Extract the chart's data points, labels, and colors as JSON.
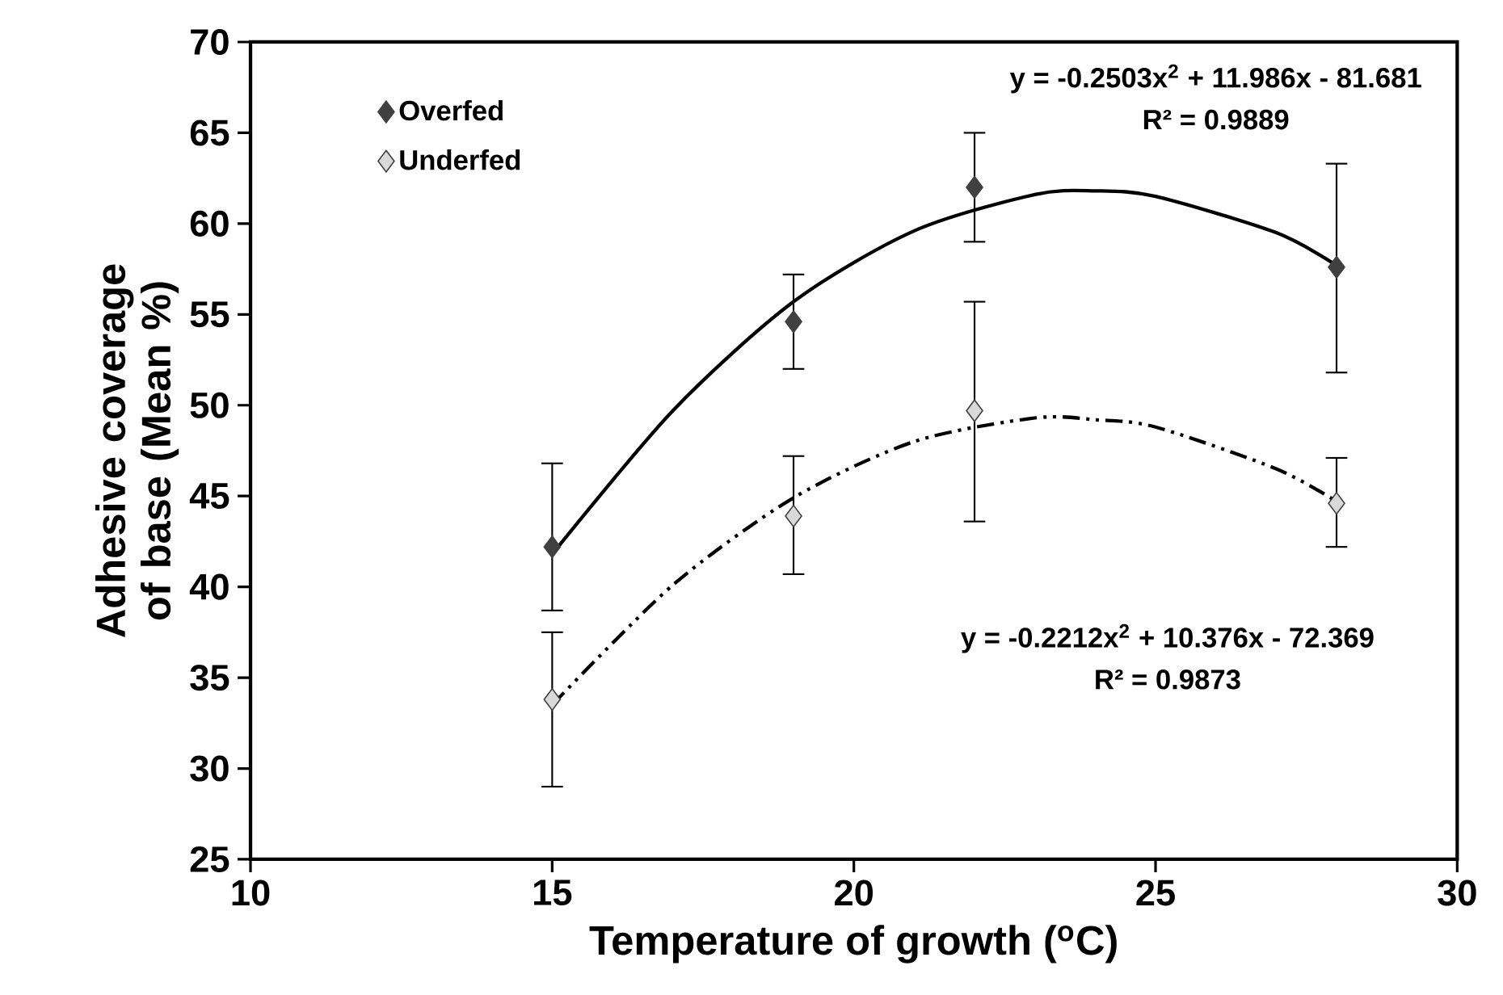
{
  "chart_data": {
    "type": "scatter",
    "xlabel": "Temperature of growth ($^{o}$C)",
    "ylabel": "Adhesive coverage of base (Mean %)",
    "x": [
      15,
      19,
      22,
      28
    ],
    "xlim": [
      10,
      30
    ],
    "xticks": [
      10,
      15,
      20,
      25,
      30
    ],
    "ylim": [
      25,
      70
    ],
    "yticks": [
      25,
      30,
      35,
      40,
      45,
      50,
      55,
      60,
      65,
      70
    ],
    "grid": false,
    "legend": "top left",
    "series": [
      {
        "name": "Overfed",
        "color": "#404040",
        "marker": "diamond",
        "values": [
          42.2,
          54.6,
          62.0,
          57.6
        ],
        "errors": [
          [
            38.7,
            46.8
          ],
          [
            52.0,
            57.2
          ],
          [
            59.0,
            65.0
          ],
          [
            51.8,
            63.3
          ]
        ]
      },
      {
        "name": "Underfed",
        "color": "#d9d9d9",
        "marker": "diamond",
        "values": [
          33.8,
          43.9,
          49.7,
          44.6
        ],
        "errors": [
          [
            29.0,
            37.5
          ],
          [
            40.7,
            47.2
          ],
          [
            43.6,
            55.7
          ],
          [
            42.2,
            47.1
          ]
        ]
      },
      {
        "type": "line",
        "color": "#000000",
        "marker": "none",
        "line_style": "solid",
        "x": [
          15,
          17,
          19,
          21,
          23,
          24,
          25,
          27,
          28
        ],
        "values": [
          41.8,
          49.7,
          55.7,
          59.6,
          61.6,
          61.8,
          61.5,
          59.5,
          57.7
        ]
      },
      {
        "type": "line",
        "color": "#000000",
        "marker": "none",
        "line_style": "dashdotdot",
        "x": [
          15,
          17,
          19,
          21,
          23,
          24,
          25,
          27,
          28
        ],
        "values": [
          33.5,
          40.1,
          44.9,
          48.0,
          49.3,
          49.2,
          48.8,
          46.5,
          44.7
        ]
      }
    ],
    "annotations": [
      "y = -0.2503x$^{2}$ + 11.986x - 81.681",
      "R² = 0.9889",
      "y = -0.2212x$^{2}$ + 10.376x - 72.369",
      "R² = 0.9873"
    ]
  }
}
